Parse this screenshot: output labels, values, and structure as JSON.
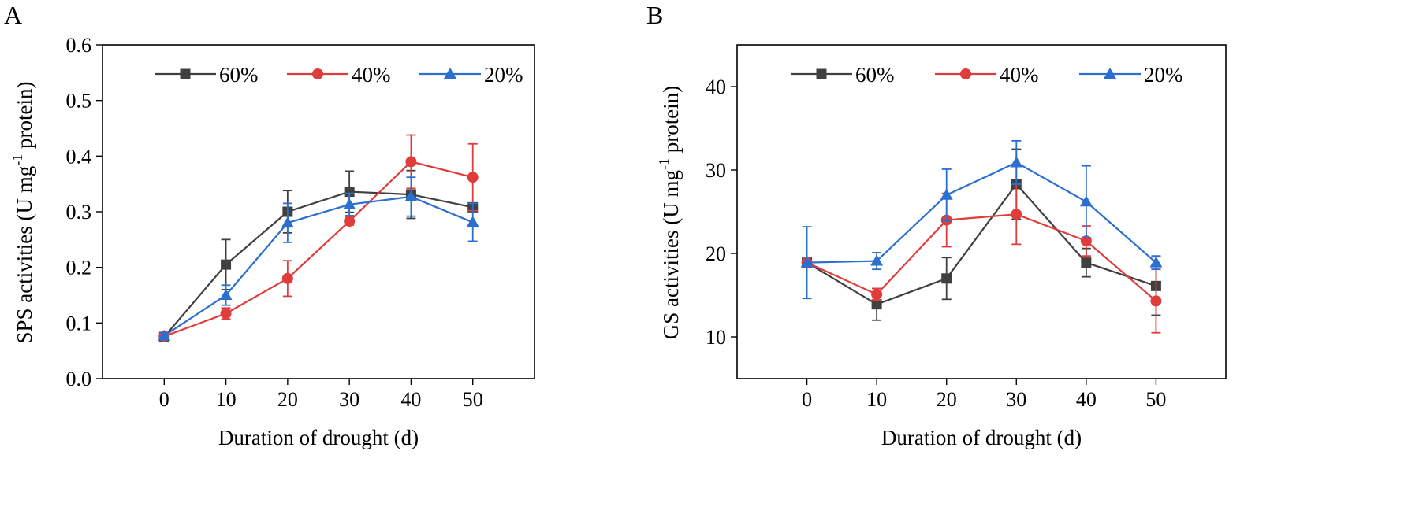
{
  "chart_data": [
    {
      "type": "line",
      "panel_label": "A",
      "title": "",
      "xlabel": "Duration of drought (d)",
      "ylabel_prefix": "SPS activities (U mg",
      "ylabel_sup": "-1",
      "ylabel_suffix": " protein)",
      "xlim": [
        -10,
        60
      ],
      "ylim": [
        0.0,
        0.6
      ],
      "xticks": [
        0,
        10,
        20,
        30,
        40,
        50
      ],
      "yticks": [
        0.0,
        0.1,
        0.2,
        0.3,
        0.4,
        0.5,
        0.6
      ],
      "ytick_labels": [
        "0.0",
        "0.1",
        "0.2",
        "0.3",
        "0.4",
        "0.5",
        "0.6"
      ],
      "legend_position": "top",
      "x": [
        0,
        10,
        20,
        30,
        40,
        50
      ],
      "series": [
        {
          "name": "60%",
          "color": "#404040",
          "marker": "square",
          "values": [
            0.075,
            0.205,
            0.3,
            0.336,
            0.331,
            0.308
          ],
          "errors": [
            0.005,
            0.045,
            0.038,
            0.037,
            0.043,
            0.005
          ]
        },
        {
          "name": "40%",
          "color": "#e03c3c",
          "marker": "circle",
          "values": [
            0.076,
            0.117,
            0.18,
            0.283,
            0.39,
            0.362
          ],
          "errors": [
            0.005,
            0.01,
            0.032,
            0.007,
            0.048,
            0.06
          ]
        },
        {
          "name": "20%",
          "color": "#2b6fd0",
          "marker": "triangle",
          "values": [
            0.077,
            0.15,
            0.28,
            0.313,
            0.327,
            0.281
          ],
          "errors": [
            0.005,
            0.018,
            0.035,
            0.02,
            0.035,
            0.034
          ]
        }
      ]
    },
    {
      "type": "line",
      "panel_label": "B",
      "title": "",
      "xlabel": "Duration of drought (d)",
      "ylabel_prefix": "GS activities (U mg",
      "ylabel_sup": "-1",
      "ylabel_suffix": " protein)",
      "xlim": [
        -10,
        60
      ],
      "ylim": [
        5,
        45
      ],
      "xticks": [
        0,
        10,
        20,
        30,
        40,
        50
      ],
      "yticks": [
        10,
        20,
        30,
        40
      ],
      "ytick_labels": [
        "10",
        "20",
        "30",
        "40"
      ],
      "legend_position": "top",
      "x": [
        0,
        10,
        20,
        30,
        40,
        50
      ],
      "series": [
        {
          "name": "60%",
          "color": "#404040",
          "marker": "square",
          "values": [
            18.9,
            13.9,
            17.0,
            28.3,
            18.9,
            16.1
          ],
          "errors": [
            0.3,
            1.9,
            2.5,
            4.2,
            1.7,
            3.5
          ]
        },
        {
          "name": "40%",
          "color": "#e03c3c",
          "marker": "circle",
          "values": [
            18.9,
            15.1,
            24.0,
            24.7,
            21.5,
            14.3
          ],
          "errors": [
            0.3,
            0.7,
            3.2,
            3.6,
            1.8,
            3.8
          ]
        },
        {
          "name": "20%",
          "color": "#2b6fd0",
          "marker": "triangle",
          "values": [
            18.9,
            19.1,
            27.0,
            30.9,
            26.2,
            18.9
          ],
          "errors": [
            4.3,
            1.0,
            3.1,
            2.6,
            4.3,
            0.8
          ]
        }
      ]
    }
  ]
}
